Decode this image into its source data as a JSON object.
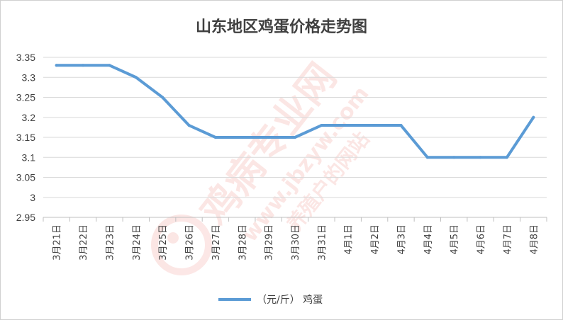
{
  "chart_data": {
    "type": "line",
    "title": "山东地区鸡蛋价格走势图",
    "categories": [
      "3月21日",
      "3月22日",
      "3月23日",
      "3月24日",
      "3月25日",
      "3月26日",
      "3月27日",
      "3月28日",
      "3月29日",
      "3月30日",
      "3月31日",
      "4月1日",
      "4月2日",
      "4月3日",
      "4月4日",
      "4月5日",
      "4月6日",
      "4月7日",
      "4月8日"
    ],
    "series": [
      {
        "name": "（元/斤） 鸡蛋",
        "color": "#5b9bd5",
        "values": [
          3.33,
          3.33,
          3.33,
          3.3,
          3.25,
          3.18,
          3.15,
          3.15,
          3.15,
          3.15,
          3.18,
          3.18,
          3.18,
          3.18,
          3.1,
          3.1,
          3.1,
          3.1,
          3.2
        ]
      }
    ],
    "yticks": [
      "2.95",
      "3",
      "3.05",
      "3.1",
      "3.15",
      "3.2",
      "3.25",
      "3.3",
      "3.35"
    ],
    "ylim": [
      2.95,
      3.35
    ],
    "xlabel": "",
    "ylabel": "",
    "grid": true,
    "legend_position": "bottom"
  },
  "watermark": {
    "main": "鸡病专业网",
    "url": "www.jbzyw.com",
    "sub": "养殖户的网站",
    "color": "#e8433a"
  }
}
